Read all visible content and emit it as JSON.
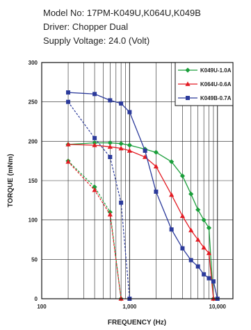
{
  "header": {
    "model_line": "Model No: 17PM-K049U,K064U,K049B",
    "driver_line": "Driver: Chopper Dual",
    "supply_line": "Supply Voltage: 24.0 (Volt)"
  },
  "chart_data": {
    "type": "line",
    "xlabel": "FREQUENCY (Hz)",
    "ylabel": "TORQUE (mNm)",
    "x_scale": "log",
    "xlim": [
      100,
      15000
    ],
    "ylim": [
      0,
      300
    ],
    "x_ticks": [
      100,
      1000,
      10000
    ],
    "x_tick_labels": [
      "100",
      "1,000",
      "10,000"
    ],
    "y_ticks": [
      0,
      50,
      100,
      150,
      200,
      250,
      300
    ],
    "y_tick_labels": [
      "0",
      "50",
      "100",
      "150",
      "200",
      "250",
      "300"
    ],
    "grid": true,
    "legend_position": "top-right",
    "series": [
      {
        "name": "K049U-1.0A",
        "color": "#1a9e3a",
        "marker": "diamond",
        "pullout": {
          "x": [
            200,
            400,
            600,
            800,
            1000,
            1500,
            2000,
            3000,
            4000,
            5000,
            6000,
            7000,
            8000
          ],
          "y": [
            196,
            198,
            198,
            197,
            195,
            190,
            186,
            174,
            156,
            133,
            113,
            100,
            90
          ]
        },
        "pullin": {
          "x": [
            200,
            400,
            600,
            800
          ],
          "y": [
            175,
            142,
            110,
            0
          ]
        },
        "pullout_end": {
          "x": [
            8000,
            9000
          ],
          "y": [
            90,
            0
          ]
        }
      },
      {
        "name": "K064U-0.6A",
        "color": "#e31b23",
        "marker": "triangle",
        "pullout": {
          "x": [
            200,
            400,
            600,
            800,
            1000,
            1500,
            2000,
            3000,
            4000,
            5000,
            6000,
            7000,
            8000
          ],
          "y": [
            196,
            195,
            193,
            191,
            188,
            180,
            168,
            132,
            105,
            87,
            75,
            65,
            58
          ]
        },
        "pullin": {
          "x": [
            200,
            400,
            600,
            800
          ],
          "y": [
            174,
            138,
            107,
            0
          ]
        },
        "pullout_end": {
          "x": [
            8000,
            9000
          ],
          "y": [
            58,
            0
          ]
        }
      },
      {
        "name": "K049B-0.7A",
        "color": "#2b3a9b",
        "marker": "square",
        "pullout": {
          "x": [
            200,
            400,
            600,
            800,
            1000,
            1500,
            2000,
            3000,
            4000,
            5000,
            6000,
            7000,
            8000,
            9000
          ],
          "y": [
            262,
            260,
            252,
            248,
            237,
            188,
            136,
            88,
            64,
            49,
            41,
            31,
            26,
            22
          ]
        },
        "pullin": {
          "x": [
            200,
            400,
            600,
            800,
            1000
          ],
          "y": [
            250,
            204,
            180,
            122,
            0
          ]
        },
        "pullout_end": {
          "x": [
            9000,
            10000
          ],
          "y": [
            22,
            0
          ]
        }
      }
    ]
  }
}
